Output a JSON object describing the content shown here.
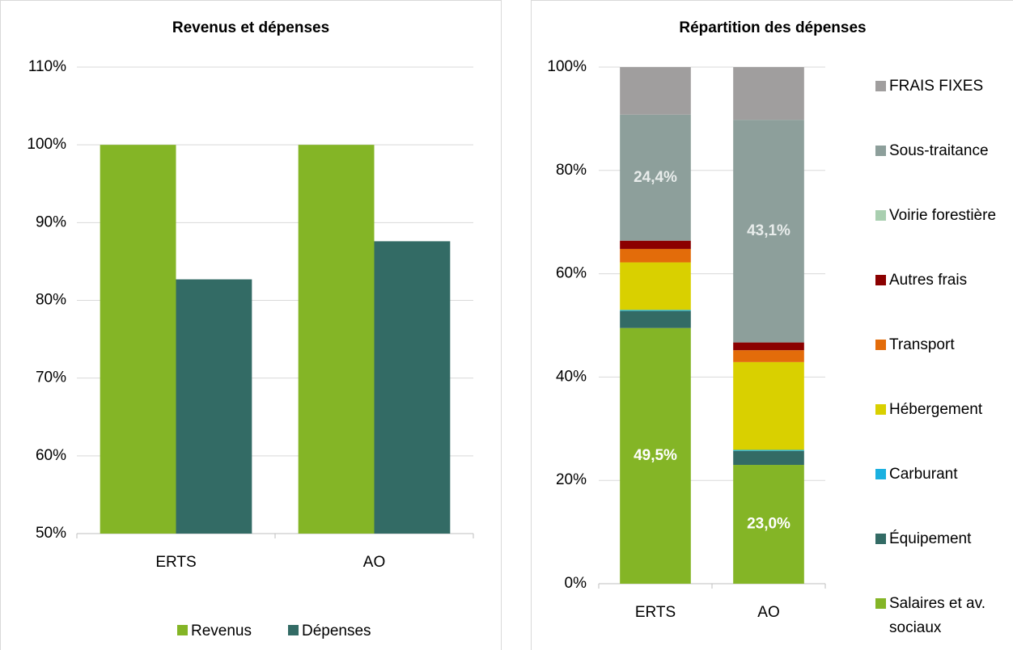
{
  "chart_data": [
    {
      "type": "bar",
      "title": "Revenus et dépenses",
      "categories": [
        "ERTS",
        "AO"
      ],
      "series": [
        {
          "name": "Revenus",
          "color": "#84b526",
          "values": [
            100,
            100
          ]
        },
        {
          "name": "Dépenses",
          "color": "#336b65",
          "values": [
            82.7,
            87.6
          ]
        }
      ],
      "ylim": [
        50,
        110
      ],
      "yticks": [
        {
          "value": 50,
          "label": "50%"
        },
        {
          "value": 60,
          "label": "60%"
        },
        {
          "value": 70,
          "label": "70%"
        },
        {
          "value": 80,
          "label": "80%"
        },
        {
          "value": 90,
          "label": "90%"
        },
        {
          "value": 100,
          "label": "100%"
        },
        {
          "value": 110,
          "label": "110%"
        }
      ],
      "grid": true,
      "legend": "bottom"
    },
    {
      "type": "stacked_bar",
      "title": "Répartition des dépenses",
      "categories": [
        "ERTS",
        "AO"
      ],
      "series": [
        {
          "name": "Salaires et av. sociaux",
          "color": "#84b526",
          "values": [
            49.5,
            23.0
          ],
          "value_labels": [
            "49,5%",
            "23,0%"
          ]
        },
        {
          "name": "Équipement",
          "color": "#336b65",
          "values": [
            3.3,
            2.7
          ]
        },
        {
          "name": "Carburant",
          "color": "#1ab0e0",
          "values": [
            0.2,
            0.2
          ]
        },
        {
          "name": "Hébergement",
          "color": "#d9d000",
          "values": [
            9.2,
            17.0
          ]
        },
        {
          "name": "Transport",
          "color": "#e36c0a",
          "values": [
            2.6,
            2.3
          ]
        },
        {
          "name": "Autres frais",
          "color": "#8b0000",
          "values": [
            1.6,
            1.5
          ]
        },
        {
          "name": "Voirie forestière",
          "color": "#a9cfb0",
          "values": [
            0,
            0
          ]
        },
        {
          "name": "Sous-traitance",
          "color": "#8d9f9b",
          "values": [
            24.4,
            43.1
          ],
          "value_labels": [
            "24,4%",
            "43,1%"
          ]
        },
        {
          "name": "FRAIS FIXES",
          "color": "#a09e9e",
          "values": [
            9.2,
            10.2
          ]
        }
      ],
      "ylim": [
        0,
        100
      ],
      "yticks": [
        {
          "value": 0,
          "label": "0%"
        },
        {
          "value": 20,
          "label": "20%"
        },
        {
          "value": 40,
          "label": "40%"
        },
        {
          "value": 60,
          "label": "60%"
        },
        {
          "value": 80,
          "label": "80%"
        },
        {
          "value": 100,
          "label": "100%"
        }
      ],
      "grid": true,
      "legend": "right"
    }
  ]
}
